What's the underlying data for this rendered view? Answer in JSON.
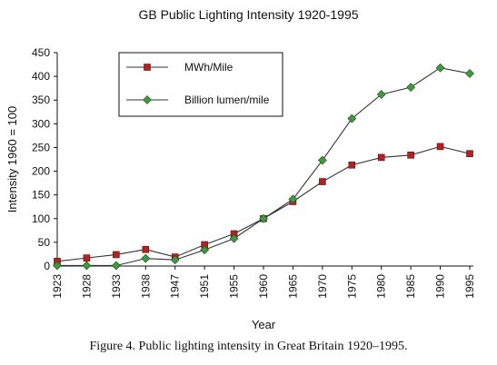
{
  "chart_data": {
    "type": "line",
    "title": "GB Public Lighting Intensity 1920-1995",
    "xlabel": "Year",
    "ylabel": "Intensity 1960 = 100",
    "categories": [
      "1923",
      "1928",
      "1933",
      "1938",
      "1947",
      "1951",
      "1955",
      "1960",
      "1965",
      "1970",
      "1975",
      "1980",
      "1985",
      "1990",
      "1995"
    ],
    "ylim": [
      0,
      450
    ],
    "yticks": [
      0,
      50,
      100,
      150,
      200,
      250,
      300,
      350,
      400,
      450
    ],
    "grid": false,
    "legend_position": "top-left",
    "series": [
      {
        "name": "MWh/Mile",
        "marker": "square",
        "color": "#b22222",
        "values": [
          10,
          17,
          24,
          35,
          19,
          45,
          68,
          100,
          136,
          178,
          213,
          229,
          234,
          252,
          237
        ]
      },
      {
        "name": "Billion lumen/mile",
        "marker": "diamond",
        "color": "#3f9a3f",
        "values": [
          1,
          1,
          1,
          16,
          13,
          34,
          58,
          100,
          141,
          223,
          311,
          362,
          377,
          418,
          406
        ]
      }
    ]
  },
  "caption": "Figure 4. Public lighting intensity in Great Britain 1920–1995."
}
